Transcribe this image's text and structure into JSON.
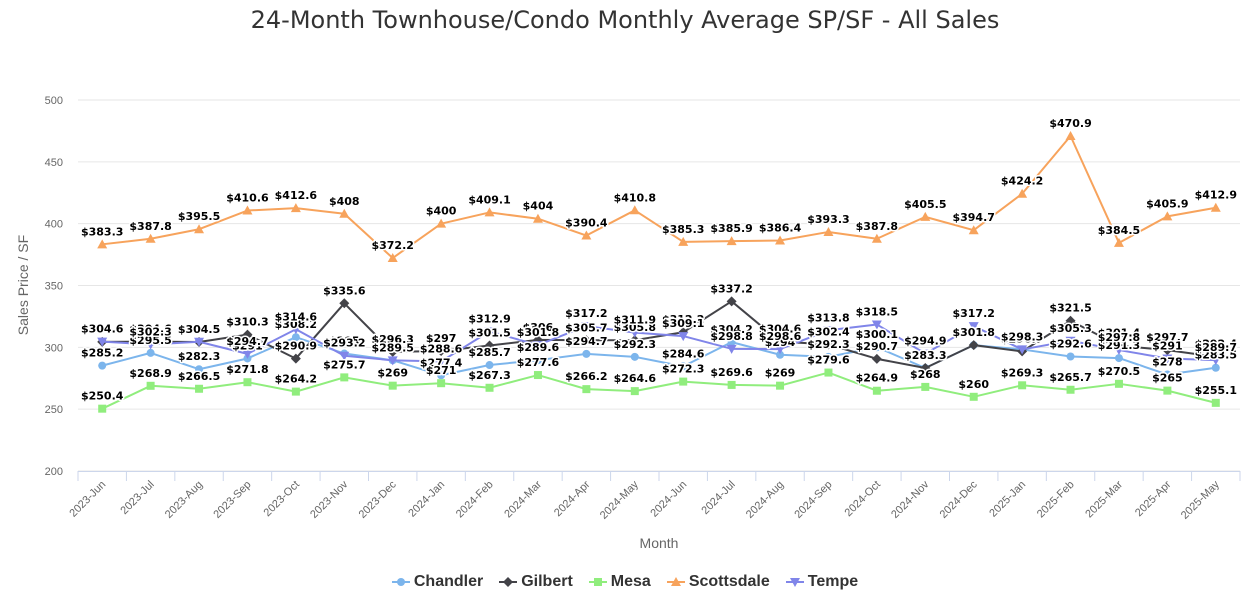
{
  "chart_data": {
    "type": "line",
    "title": "24-Month Townhouse/Condo Monthly Average SP/SF - All Sales",
    "xlabel": "Month",
    "ylabel": "Sales Price / SF",
    "ylim": [
      200,
      500
    ],
    "yticks": [
      200,
      250,
      300,
      350,
      400,
      450,
      500
    ],
    "grid": "horizontal",
    "legend_position": "bottom",
    "value_prefix": "$",
    "categories": [
      "2023-Jun",
      "2023-Jul",
      "2023-Aug",
      "2023-Sep",
      "2023-Oct",
      "2023-Nov",
      "2023-Dec",
      "2024-Jan",
      "2024-Feb",
      "2024-Mar",
      "2024-Apr",
      "2024-May",
      "2024-Jun",
      "2024-Jul",
      "2024-Aug",
      "2024-Sep",
      "2024-Oct",
      "2024-Nov",
      "2024-Dec",
      "2025-Jan",
      "2025-Feb",
      "2025-Mar",
      "2025-Apr",
      "2025-May"
    ],
    "series": [
      {
        "name": "Chandler",
        "color": "#7cb5ec",
        "marker": "circle",
        "values": [
          285.2,
          295.5,
          282.3,
          291,
          308.2,
          295,
          289.5,
          277.4,
          285.7,
          289.6,
          294.7,
          292.3,
          284.6,
          304.2,
          294,
          292.3,
          300.1,
          283.3,
          301.8,
          298.3,
          292.6,
          291.3,
          278,
          283.5
        ]
      },
      {
        "name": "Gilbert",
        "color": "#434348",
        "marker": "diamond",
        "values": [
          304.4,
          304.6,
          304.3,
          310.3,
          290.9,
          335.6,
          296.3,
          297,
          301.5,
          306,
          305.7,
          305.8,
          312.2,
          337.2,
          304.6,
          302.4,
          290.7,
          283.3,
          301.8,
          296.7,
          321.5,
          301.4,
          297.7,
          292.4
        ]
      },
      {
        "name": "Mesa",
        "color": "#90ed7d",
        "marker": "square",
        "values": [
          250.4,
          268.9,
          266.5,
          271.8,
          264.2,
          275.7,
          269,
          271,
          267.3,
          277.6,
          266.2,
          264.6,
          272.3,
          269.6,
          269,
          279.6,
          264.9,
          268,
          260,
          269.3,
          265.7,
          270.5,
          265,
          255.1
        ]
      },
      {
        "name": "Scottsdale",
        "color": "#f7a35c",
        "marker": "triangle",
        "values": [
          383.3,
          387.8,
          395.5,
          410.6,
          412.6,
          408,
          372.2,
          400,
          409.1,
          404,
          390.4,
          410.8,
          385.3,
          385.9,
          386.4,
          393.3,
          387.8,
          405.5,
          394.7,
          424.2,
          470.9,
          384.5,
          405.9,
          412.9
        ]
      },
      {
        "name": "Tempe",
        "color": "#8085e9",
        "marker": "triangle-down",
        "values": [
          304.6,
          302.3,
          304.5,
          294.7,
          314.6,
          293.2,
          289.5,
          288.6,
          312.9,
          301.8,
          317.2,
          311.9,
          309.1,
          298.8,
          298.6,
          313.8,
          318.5,
          294.9,
          317.2,
          298.3,
          305.3,
          297.8,
          291,
          289.7
        ]
      }
    ]
  }
}
